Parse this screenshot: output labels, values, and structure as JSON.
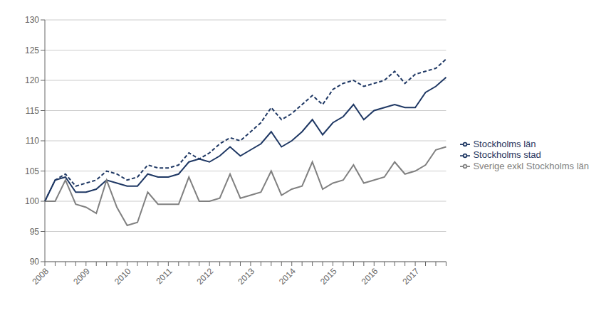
{
  "chart_data": {
    "type": "line",
    "categories": [
      "2008",
      null,
      null,
      null,
      "2009",
      null,
      null,
      null,
      "2010",
      null,
      null,
      null,
      "2011",
      null,
      null,
      null,
      "2012",
      null,
      null,
      null,
      "2013",
      null,
      null,
      null,
      "2014",
      null,
      null,
      null,
      "2015",
      null,
      null,
      null,
      "2016",
      null,
      null,
      null,
      "2017",
      null,
      null,
      null
    ],
    "series": [
      {
        "name": "Stockholms län",
        "color": "#1F3864",
        "line_style": "solid",
        "values": [
          100.0,
          103.5,
          104.0,
          101.5,
          101.5,
          102.0,
          103.5,
          103.0,
          102.5,
          102.5,
          104.5,
          104.0,
          104.0,
          104.5,
          106.5,
          107.0,
          106.5,
          107.5,
          109.0,
          107.5,
          108.5,
          109.5,
          111.5,
          109.0,
          110.0,
          111.5,
          113.5,
          111.0,
          113.0,
          114.0,
          116.0,
          113.5,
          115.0,
          115.5,
          116.0,
          115.5,
          115.5,
          118.0,
          119.0,
          120.5
        ]
      },
      {
        "name": "Sverige exkl Stockholms län",
        "color": "#808080",
        "line_style": "solid",
        "values": [
          100.0,
          100.0,
          103.5,
          99.5,
          99.0,
          98.0,
          103.5,
          99.0,
          96.0,
          96.5,
          101.5,
          99.5,
          99.5,
          99.5,
          104.0,
          100.0,
          100.0,
          100.5,
          104.5,
          100.5,
          101.0,
          101.5,
          105.0,
          101.0,
          102.0,
          102.5,
          106.5,
          102.0,
          103.0,
          103.5,
          106.0,
          103.0,
          103.5,
          104.0,
          106.5,
          104.5,
          105.0,
          106.0,
          108.5,
          109.0
        ]
      },
      {
        "name": "Stockholms stad",
        "color": "#1F3864",
        "line_style": "dashed",
        "values": [
          100.0,
          103.5,
          104.5,
          102.5,
          103.0,
          103.5,
          105.0,
          104.5,
          103.5,
          104.0,
          106.0,
          105.5,
          105.5,
          106.0,
          108.0,
          107.0,
          108.0,
          109.5,
          110.5,
          110.0,
          111.5,
          113.0,
          115.5,
          113.5,
          114.5,
          116.0,
          117.5,
          116.0,
          118.5,
          119.5,
          120.0,
          119.0,
          119.5,
          120.0,
          121.5,
          119.5,
          121.0,
          121.5,
          122.0,
          123.5
        ]
      }
    ],
    "ylim": [
      90,
      130
    ],
    "yticks": [
      90,
      95,
      100,
      105,
      110,
      115,
      120,
      125,
      130
    ],
    "grid": true,
    "legend": "right"
  }
}
